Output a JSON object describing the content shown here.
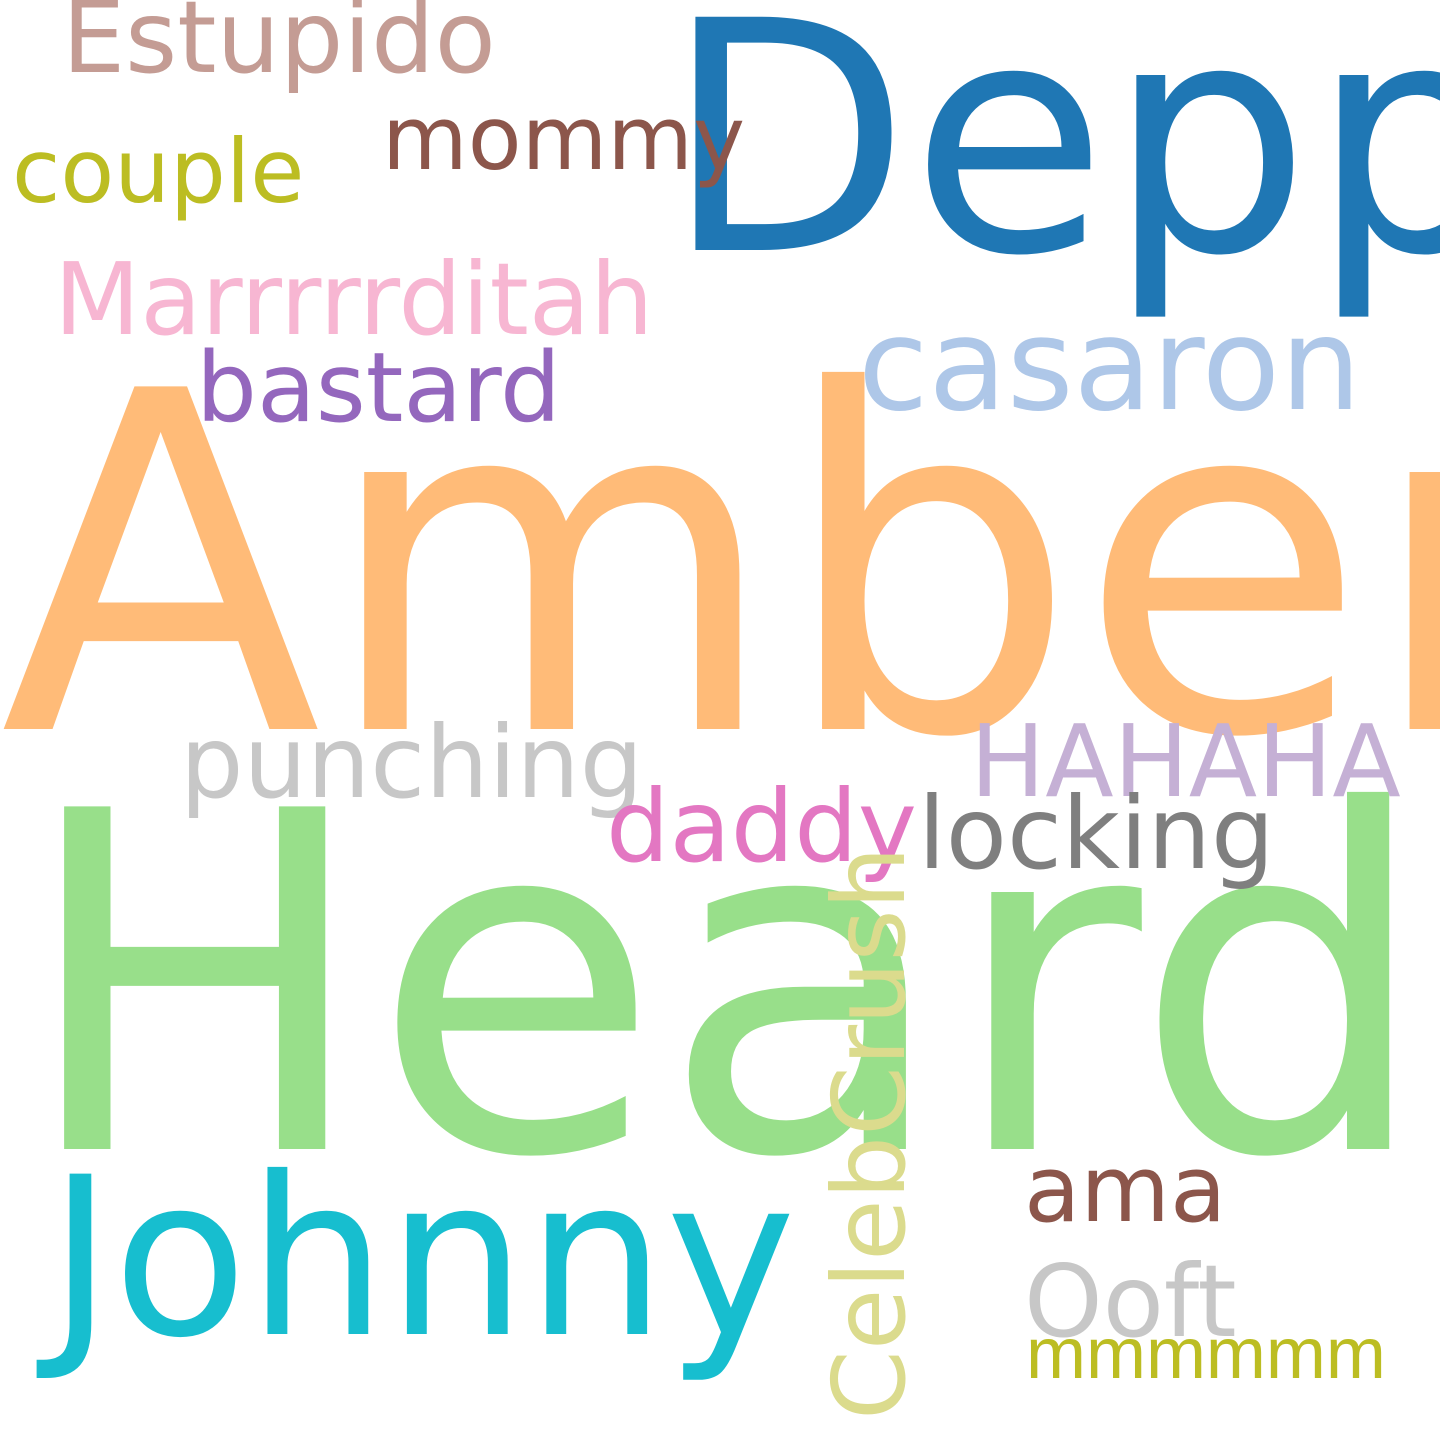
{
  "word_cloud": {
    "words": [
      {
        "text": "Depp",
        "color": "#1f77b4"
      },
      {
        "text": "Amber",
        "color": "#ffbb78"
      },
      {
        "text": "Heard",
        "color": "#98df8a"
      },
      {
        "text": "Johnny",
        "color": "#17becf"
      },
      {
        "text": "casaron",
        "color": "#aec7e8"
      },
      {
        "text": "Marrrrrditah",
        "color": "#f7b6d2"
      },
      {
        "text": "Estupido",
        "color": "#c49c94"
      },
      {
        "text": "bastard",
        "color": "#9467bd"
      },
      {
        "text": "mommy",
        "color": "#8c564b"
      },
      {
        "text": "couple",
        "color": "#bcbd22"
      },
      {
        "text": "punching",
        "color": "#c7c7c7"
      },
      {
        "text": "HAHAHA",
        "color": "#c5b0d5"
      },
      {
        "text": "locking",
        "color": "#7f7f7f"
      },
      {
        "text": "daddy",
        "color": "#e377c2"
      },
      {
        "text": "CelebCrush",
        "color": "#dbdb8d"
      },
      {
        "text": "ama",
        "color": "#8c564b"
      },
      {
        "text": "Ooft",
        "color": "#c7c7c7"
      },
      {
        "text": "mmmmmm",
        "color": "#bcbd22"
      }
    ]
  }
}
